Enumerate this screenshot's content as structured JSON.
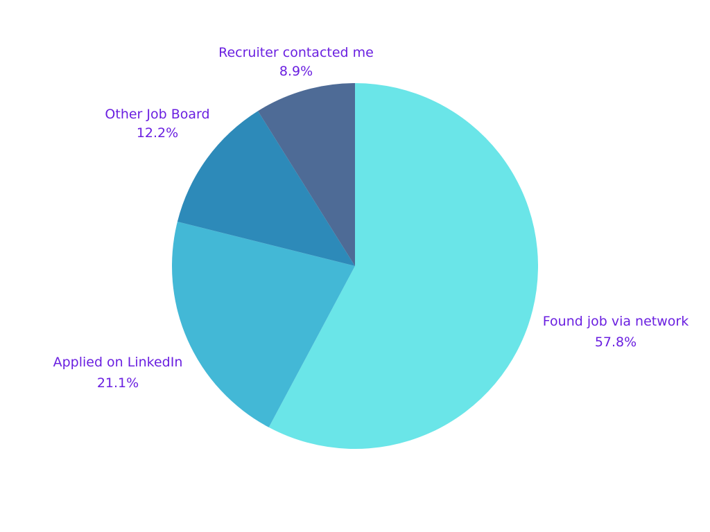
{
  "chart_data": {
    "type": "pie",
    "title": "",
    "categories": [
      "Found job via network",
      "Applied on LinkedIn",
      "Other Job Board",
      "Recruiter contacted me"
    ],
    "values": [
      57.8,
      21.1,
      12.2,
      8.9
    ],
    "value_labels": [
      "57.8%",
      "21.1%",
      "12.2%",
      "8.9%"
    ],
    "colors": [
      "#6ae5e8",
      "#43b8d6",
      "#2d8ab9",
      "#4e6b96"
    ],
    "label_color": "#6a1fe0",
    "start": "12 o'clock",
    "direction": "clockwise",
    "legend": "none"
  }
}
